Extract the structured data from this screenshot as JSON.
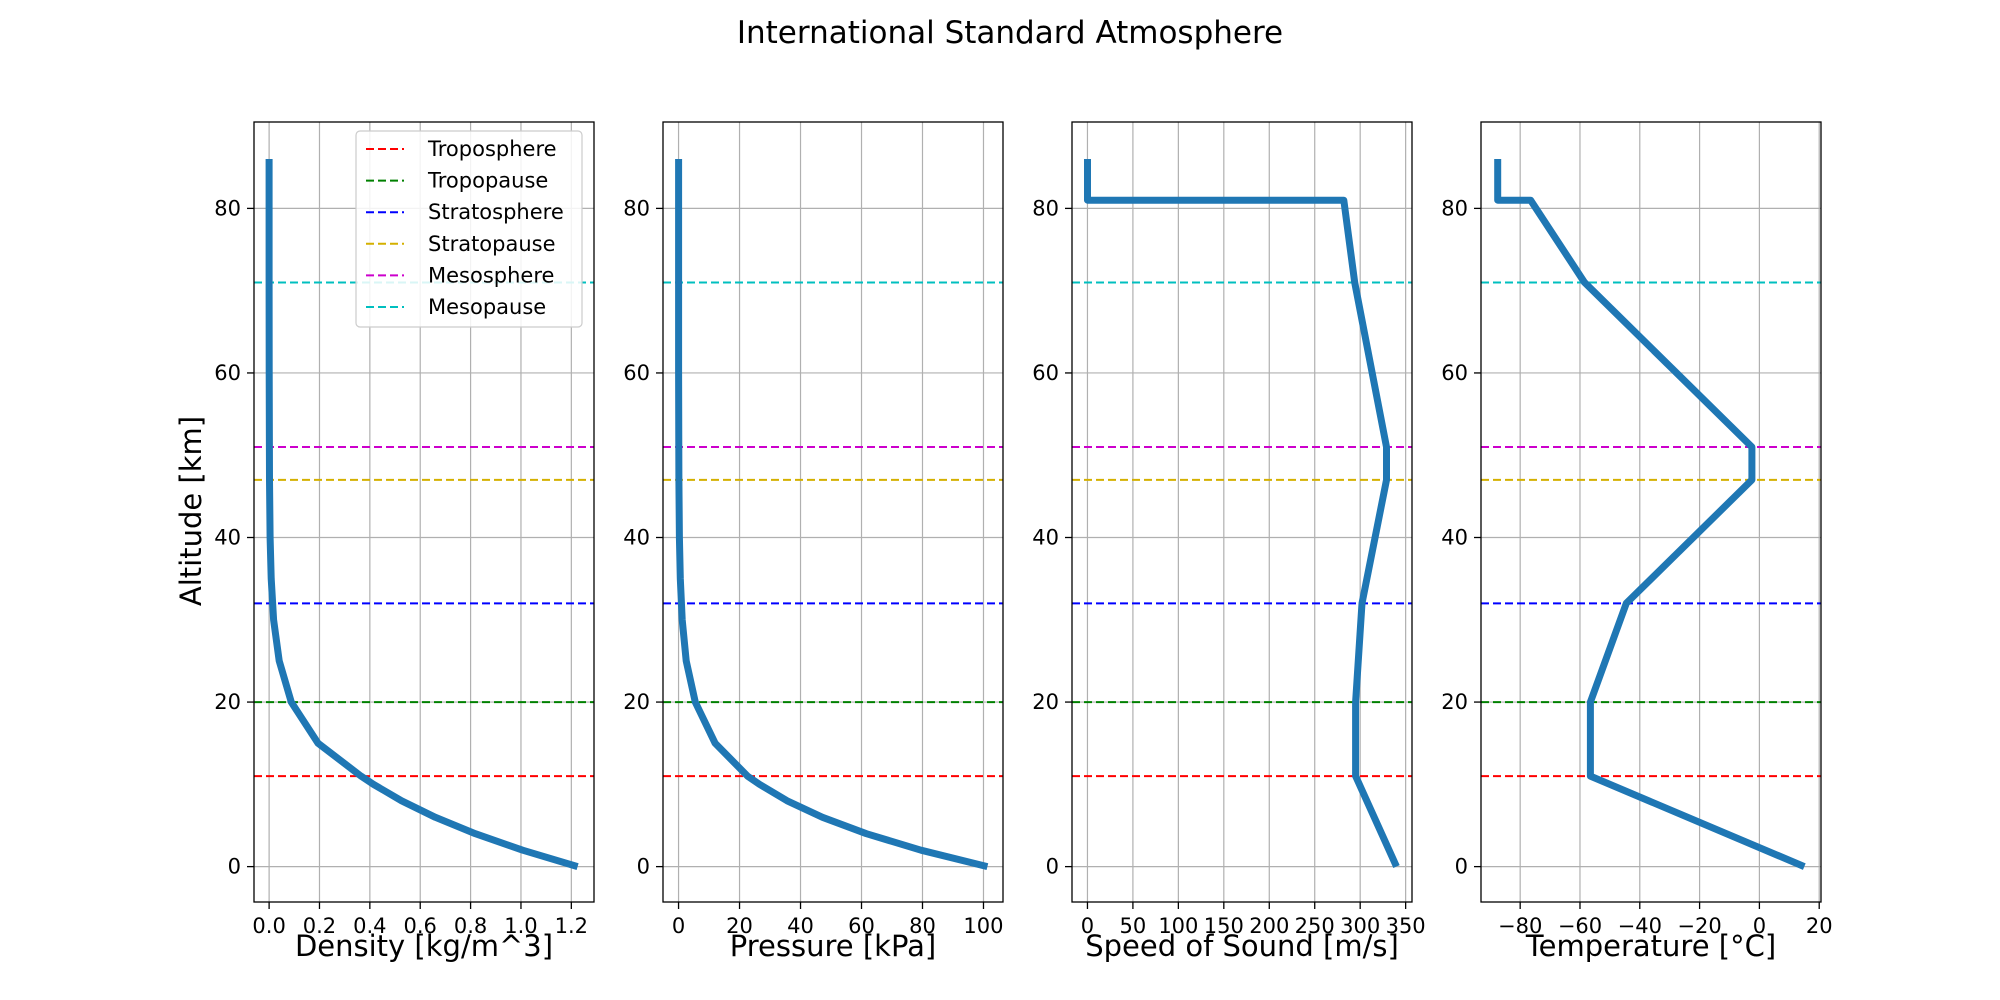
{
  "title": "International Standard Atmosphere",
  "ylabel": "Altitude [km]",
  "boundaries": [
    {
      "name": "Troposphere",
      "altitude": 11,
      "color": "#ff0000"
    },
    {
      "name": "Tropopause",
      "altitude": 20,
      "color": "#008000"
    },
    {
      "name": "Stratosphere",
      "altitude": 32,
      "color": "#0000ff"
    },
    {
      "name": "Stratopause",
      "altitude": 47,
      "color": "#d4b000"
    },
    {
      "name": "Mesosphere",
      "altitude": 51,
      "color": "#cc00cc"
    },
    {
      "name": "Mesopause",
      "altitude": 71,
      "color": "#00bfbf"
    }
  ],
  "colors": {
    "profile": "#1f77b4",
    "grid": "#b0b0b0"
  },
  "chart_data": [
    {
      "type": "line",
      "xlabel": "Density [kg/m^3]",
      "xlim": [
        -0.06,
        1.29
      ],
      "ylim": [
        -4.3,
        90.5
      ],
      "xticks": [
        0.0,
        0.2,
        0.4,
        0.6,
        0.8,
        1.0,
        1.2
      ],
      "xtick_labels": [
        "0.0",
        "0.2",
        "0.4",
        "0.6",
        "0.8",
        "1.0",
        "1.2"
      ],
      "yticks": [
        0,
        20,
        40,
        60,
        80
      ],
      "ytick_labels": [
        "0",
        "20",
        "40",
        "60",
        "80"
      ],
      "legend": "top-right",
      "series": [
        {
          "x": [
            1.225,
            1.007,
            0.819,
            0.66,
            0.526,
            0.414,
            0.365,
            0.194,
            0.088,
            0.04,
            0.018,
            0.0082,
            0.004,
            0.0014,
            0.00098,
            0.00031,
            8.3e-05,
            2e-05,
            7e-06
          ],
          "y": [
            0,
            2,
            4,
            6,
            8,
            10,
            11,
            15,
            20,
            25,
            30,
            35,
            40,
            47,
            51,
            60,
            71,
            81,
            86
          ]
        }
      ]
    },
    {
      "type": "line",
      "xlabel": "Pressure [kPa]",
      "xlim": [
        -5.1,
        106.4
      ],
      "ylim": [
        -4.3,
        90.5
      ],
      "xticks": [
        0,
        20,
        40,
        60,
        80,
        100
      ],
      "xtick_labels": [
        "0",
        "20",
        "40",
        "60",
        "80",
        "100"
      ],
      "yticks": [
        0,
        20,
        40,
        60,
        80
      ],
      "ytick_labels": [
        "0",
        "20",
        "40",
        "60",
        "80"
      ],
      "series": [
        {
          "x": [
            101.3,
            79.5,
            61.6,
            47.2,
            35.6,
            26.5,
            22.6,
            12.0,
            5.5,
            2.5,
            1.2,
            0.57,
            0.29,
            0.11,
            0.067,
            0.022,
            0.004,
            0.0006,
            0.0004
          ],
          "y": [
            0,
            2,
            4,
            6,
            8,
            10,
            11,
            15,
            20,
            25,
            30,
            35,
            40,
            47,
            51,
            60,
            71,
            81,
            86
          ]
        }
      ]
    },
    {
      "type": "line",
      "xlabel": "Speed of Sound [m/s]",
      "xlim": [
        -17,
        357
      ],
      "ylim": [
        -4.3,
        90.5
      ],
      "xticks": [
        0,
        50,
        100,
        150,
        200,
        250,
        300,
        350
      ],
      "xtick_labels": [
        "0",
        "50",
        "100",
        "150",
        "200",
        "250",
        "300",
        "350"
      ],
      "yticks": [
        0,
        20,
        40,
        60,
        80
      ],
      "ytick_labels": [
        "0",
        "20",
        "40",
        "60",
        "80"
      ],
      "series": [
        {
          "x": [
            340,
            295,
            295,
            302,
            329,
            329,
            294,
            282,
            0,
            0
          ],
          "y": [
            0,
            11,
            20,
            32,
            47,
            51,
            71,
            81,
            81,
            86
          ]
        }
      ]
    },
    {
      "type": "line",
      "xlabel": "Temperature [°C]",
      "xlim": [
        -93.1,
        20.6
      ],
      "ylim": [
        -4.3,
        90.5
      ],
      "xticks": [
        -80,
        -60,
        -40,
        -20,
        0,
        20
      ],
      "xtick_labels": [
        "−80",
        "−60",
        "−40",
        "−20",
        "0",
        "20"
      ],
      "yticks": [
        0,
        20,
        40,
        60,
        80
      ],
      "ytick_labels": [
        "0",
        "20",
        "40",
        "60",
        "80"
      ],
      "series": [
        {
          "x": [
            15,
            -56.5,
            -56.5,
            -44.5,
            -2.5,
            -2.5,
            -58.5,
            -76.5,
            -87.5,
            -87.5
          ],
          "y": [
            0,
            11,
            20,
            32,
            47,
            51,
            71,
            81,
            81,
            86
          ]
        }
      ]
    }
  ]
}
